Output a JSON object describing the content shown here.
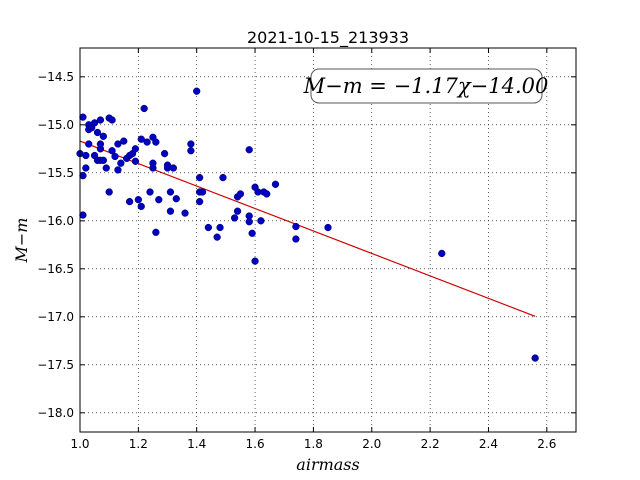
{
  "chart_data": {
    "type": "scatter",
    "title": "2021-10-15_213933",
    "xlabel": "airmass",
    "ylabel": "M−m",
    "xlim": [
      1.0,
      2.7
    ],
    "ylim": [
      -18.2,
      -14.2
    ],
    "xticks": [
      1.0,
      1.2,
      1.4,
      1.6,
      1.8,
      2.0,
      2.2,
      2.4,
      2.6
    ],
    "xtick_labels": [
      "1.0",
      "1.2",
      "1.4",
      "1.6",
      "1.8",
      "2.0",
      "2.2",
      "2.4",
      "2.6"
    ],
    "yticks": [
      -14.5,
      -15.0,
      -15.5,
      -16.0,
      -16.5,
      -17.0,
      -17.5,
      -18.0
    ],
    "ytick_labels": [
      "−14.5",
      "−15.0",
      "−15.5",
      "−16.0",
      "−16.5",
      "−17.0",
      "−17.5",
      "−18.0"
    ],
    "grid": true,
    "annotation": "M−m = −1.17χ−14.00",
    "fit": {
      "slope": -1.17,
      "intercept": -14.0,
      "x_range": [
        1.0,
        2.56
      ],
      "color": "#d00000"
    },
    "point_color": "#0000c0",
    "points": [
      [
        1.0,
        -15.3
      ],
      [
        1.01,
        -15.53
      ],
      [
        1.01,
        -15.94
      ],
      [
        1.01,
        -14.92
      ],
      [
        1.02,
        -15.32
      ],
      [
        1.02,
        -15.45
      ],
      [
        1.03,
        -15.0
      ],
      [
        1.03,
        -15.05
      ],
      [
        1.03,
        -15.2
      ],
      [
        1.04,
        -15.03
      ],
      [
        1.05,
        -15.32
      ],
      [
        1.05,
        -14.98
      ],
      [
        1.06,
        -15.08
      ],
      [
        1.06,
        -15.37
      ],
      [
        1.07,
        -15.37
      ],
      [
        1.07,
        -15.25
      ],
      [
        1.07,
        -15.2
      ],
      [
        1.07,
        -14.95
      ],
      [
        1.08,
        -15.12
      ],
      [
        1.08,
        -15.37
      ],
      [
        1.09,
        -15.45
      ],
      [
        1.1,
        -15.7
      ],
      [
        1.1,
        -14.93
      ],
      [
        1.11,
        -15.27
      ],
      [
        1.11,
        -14.95
      ],
      [
        1.12,
        -15.33
      ],
      [
        1.13,
        -15.47
      ],
      [
        1.13,
        -15.2
      ],
      [
        1.14,
        -15.4
      ],
      [
        1.15,
        -15.17
      ],
      [
        1.16,
        -15.35
      ],
      [
        1.17,
        -15.32
      ],
      [
        1.17,
        -15.8
      ],
      [
        1.18,
        -15.3
      ],
      [
        1.19,
        -15.38
      ],
      [
        1.19,
        -15.25
      ],
      [
        1.2,
        -15.78
      ],
      [
        1.21,
        -15.85
      ],
      [
        1.21,
        -15.15
      ],
      [
        1.22,
        -14.83
      ],
      [
        1.23,
        -15.18
      ],
      [
        1.24,
        -15.7
      ],
      [
        1.25,
        -15.45
      ],
      [
        1.25,
        -15.4
      ],
      [
        1.25,
        -15.13
      ],
      [
        1.26,
        -16.12
      ],
      [
        1.26,
        -15.18
      ],
      [
        1.27,
        -15.78
      ],
      [
        1.29,
        -15.3
      ],
      [
        1.3,
        -15.42
      ],
      [
        1.3,
        -15.45
      ],
      [
        1.31,
        -15.7
      ],
      [
        1.31,
        -15.9
      ],
      [
        1.32,
        -15.45
      ],
      [
        1.33,
        -15.77
      ],
      [
        1.36,
        -15.92
      ],
      [
        1.38,
        -15.2
      ],
      [
        1.38,
        -15.27
      ],
      [
        1.4,
        -14.65
      ],
      [
        1.41,
        -15.55
      ],
      [
        1.41,
        -15.7
      ],
      [
        1.41,
        -15.8
      ],
      [
        1.42,
        -15.7
      ],
      [
        1.44,
        -16.07
      ],
      [
        1.47,
        -16.17
      ],
      [
        1.48,
        -16.07
      ],
      [
        1.49,
        -15.55
      ],
      [
        1.53,
        -15.97
      ],
      [
        1.54,
        -15.75
      ],
      [
        1.54,
        -15.9
      ],
      [
        1.55,
        -15.72
      ],
      [
        1.58,
        -15.26
      ],
      [
        1.58,
        -15.95
      ],
      [
        1.58,
        -16.01
      ],
      [
        1.59,
        -16.13
      ],
      [
        1.6,
        -16.42
      ],
      [
        1.6,
        -15.65
      ],
      [
        1.61,
        -15.7
      ],
      [
        1.62,
        -16.0
      ],
      [
        1.63,
        -15.7
      ],
      [
        1.64,
        -15.72
      ],
      [
        1.67,
        -15.62
      ],
      [
        1.74,
        -16.06
      ],
      [
        1.74,
        -16.19
      ],
      [
        1.85,
        -16.07
      ],
      [
        2.24,
        -16.34
      ],
      [
        2.56,
        -17.43
      ]
    ]
  }
}
